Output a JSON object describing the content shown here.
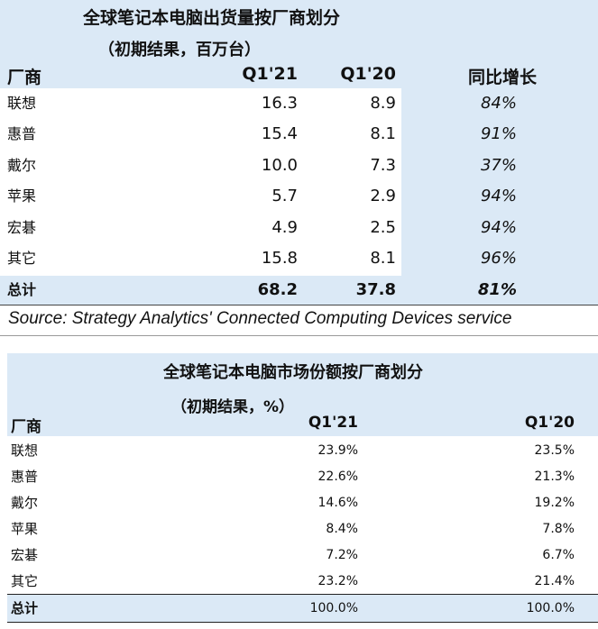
{
  "table1": {
    "title": "全球笔记本电脑出货量按厂商划分",
    "subtitle": "（初期结果，百万台）",
    "headers": {
      "vendor": "厂商",
      "q121": "Q1'21",
      "q120": "Q1'20",
      "yoy": "同比增长"
    },
    "rows": [
      {
        "vendor": "联想",
        "q121": "16.3",
        "q120": "8.9",
        "yoy": "84%"
      },
      {
        "vendor": "惠普",
        "q121": "15.4",
        "q120": "8.1",
        "yoy": "91%"
      },
      {
        "vendor": "戴尔",
        "q121": "10.0",
        "q120": "7.3",
        "yoy": "37%"
      },
      {
        "vendor": "苹果",
        "q121": "5.7",
        "q120": "2.9",
        "yoy": "94%"
      },
      {
        "vendor": "宏碁",
        "q121": "4.9",
        "q120": "2.5",
        "yoy": "94%"
      },
      {
        "vendor": "其它",
        "q121": "15.8",
        "q120": "8.1",
        "yoy": "96%"
      }
    ],
    "total": {
      "vendor": "总计",
      "q121": "68.2",
      "q120": "37.8",
      "yoy": "81%"
    }
  },
  "source": "Source: Strategy Analytics' Connected Computing Devices service",
  "table2": {
    "title": "全球笔记本电脑市场份额按厂商划分",
    "subtitle": "（初期结果，%）",
    "headers": {
      "vendor": "厂商",
      "q121": "Q1'21",
      "q120": "Q1'20"
    },
    "rows": [
      {
        "vendor": "联想",
        "q121": "23.9%",
        "q120": "23.5%"
      },
      {
        "vendor": "惠普",
        "q121": "22.6%",
        "q120": "21.3%"
      },
      {
        "vendor": "戴尔",
        "q121": "14.6%",
        "q120": "19.2%"
      },
      {
        "vendor": "苹果",
        "q121": "8.4%",
        "q120": "7.8%"
      },
      {
        "vendor": "宏碁",
        "q121": "7.2%",
        "q120": "6.7%"
      },
      {
        "vendor": "其它",
        "q121": "23.2%",
        "q120": "21.4%"
      }
    ],
    "total": {
      "vendor": "总计",
      "q121": "100.0%",
      "q120": "100.0%"
    }
  },
  "colors": {
    "band": "#dbe9f6",
    "text": "#111111"
  }
}
